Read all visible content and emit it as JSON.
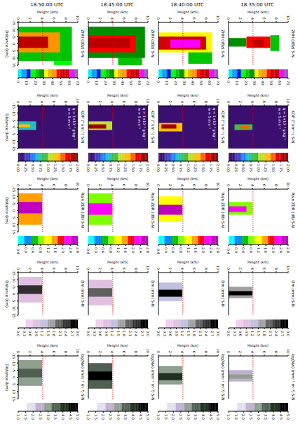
{
  "chart_data": {
    "type": "heatmap_grid",
    "rows": [
      "18:35:00 UTC",
      "18:40:00 UTC",
      "18:45:00 UTC",
      "18:50:00 UTC"
    ],
    "x_label": "Distance (km)",
    "y_label": "Height (km)",
    "xlim": [
      -15,
      15
    ],
    "xticks": [
      -15,
      -10,
      -5,
      0,
      5,
      10,
      15
    ],
    "ylim": [
      0,
      10
    ],
    "yticks": [
      0,
      2,
      4,
      6,
      8,
      10
    ],
    "reference_height": 4.1,
    "columns": [
      {
        "title": "ZHH (dBz) S-N",
        "colorbar": {
          "range": [
            0,
            70
          ],
          "ticks": [
            0,
            10,
            20,
            30,
            40,
            50,
            60,
            70
          ],
          "colors": [
            "#04e9e7",
            "#019ff4",
            "#0300f4",
            "#02fd02",
            "#01c501",
            "#008e00",
            "#fdf802",
            "#e5bc00",
            "#fd9500",
            "#fd0000",
            "#d40000",
            "#bc0000",
            "#f800fd",
            "#9854c6"
          ]
        },
        "annotations": [],
        "cells": [
          [
            [
              -6,
              5,
              7,
              8.5,
              20
            ],
            [
              -4,
              2,
              0,
              3,
              25
            ],
            [
              -5,
              3,
              3,
              7,
              45
            ],
            [
              -3,
              2,
              4,
              6,
              55
            ]
          ],
          [
            [
              5,
              14,
              5,
              9,
              20
            ],
            [
              -8,
              6,
              0,
              9,
              30
            ],
            [
              -5,
              4,
              0,
              8,
              50
            ],
            [
              -3,
              3,
              2,
              7,
              60
            ]
          ],
          [
            [
              6,
              15,
              5,
              9,
              20
            ],
            [
              -12,
              10,
              0,
              9.5,
              25
            ],
            [
              -6,
              6,
              0,
              8,
              45
            ],
            [
              -4,
              3,
              0,
              7,
              58
            ]
          ],
          [
            [
              6,
              15,
              6,
              9,
              15
            ],
            [
              -12,
              12,
              0,
              9,
              22
            ],
            [
              -8,
              6,
              0,
              7,
              42
            ],
            [
              -5,
              3,
              0,
              5,
              55
            ]
          ]
        ]
      },
      {
        "title": "KDP (° km⁻¹) S-N",
        "colorbar": {
          "range": [
            0,
            2
          ],
          "ticks": [
            {
              "value": 0,
              "label": "0.00"
            },
            {
              "value": 0.25,
              "label": "0.25"
            },
            {
              "value": 0.5,
              "label": "0.50"
            },
            {
              "value": 0.75,
              "label": "0.75"
            },
            {
              "value": 1,
              "label": "1.00"
            },
            {
              "value": 1.25,
              "label": "1.25"
            },
            {
              "value": 1.5,
              "label": "1.50"
            },
            {
              "value": 1.75,
              "label": "1.75"
            },
            {
              "value": 2,
              "label": "2.00"
            }
          ],
          "colors": [
            "#3b0f70",
            "#4040c0",
            "#2080ff",
            "#20c0c0",
            "#40c040",
            "#c0e030",
            "#ffc000",
            "#ff6000",
            "#e00000",
            "#a00000"
          ]
        },
        "annotations": [
          "q = 1×10⁻³ g kg⁻¹",
          "w = 5 m s⁻¹"
        ],
        "cells": [
          [
            [
              -15,
              15,
              0,
              10,
              0
            ],
            [
              -2,
              2,
              1,
              4,
              0.8
            ],
            [
              -1,
              1,
              2,
              3.5,
              1.5
            ]
          ],
          [
            [
              -15,
              15,
              0,
              10,
              0
            ],
            [
              -3,
              3,
              0,
              4,
              1.2
            ],
            [
              -2,
              1,
              0.5,
              3,
              2
            ]
          ],
          [
            [
              -15,
              15,
              0,
              10,
              0
            ],
            [
              -4,
              2,
              0,
              4,
              1
            ],
            [
              -2,
              1,
              0,
              3,
              1.8
            ]
          ],
          [
            [
              -15,
              15,
              0,
              10,
              0
            ],
            [
              -4,
              2,
              0,
              3,
              0.6
            ],
            [
              -2,
              0,
              0,
              2,
              1.2
            ]
          ]
        ]
      },
      {
        "title": "Rain ZDR (dB) S-N",
        "colorbar": {
          "range": [
            -0.4,
            2.8
          ],
          "ticks": [
            -0.4,
            {
              "value": 0,
              "label": "0.0"
            },
            0.4,
            0.8,
            1.2,
            1.6,
            {
              "value": 2,
              "label": "2.0"
            },
            2.4,
            2.8
          ],
          "colors": [
            "#00ffff",
            "#0080ff",
            "#00c000",
            "#80ff00",
            "#ffff00",
            "#ffa000",
            "#ff0000",
            "#ff00ff",
            "#c000c0"
          ]
        },
        "annotations": [],
        "cells": [
          [
            [
              -6,
              3,
              0,
              4,
              0.8
            ],
            [
              -3,
              1,
              0,
              3,
              2.4
            ]
          ],
          [
            [
              -10,
              8,
              0,
              4,
              1.2
            ],
            [
              -4,
              3,
              0,
              4,
              2.6
            ]
          ],
          [
            [
              -12,
              10,
              0,
              4,
              1
            ],
            [
              -5,
              3,
              0,
              4,
              2.2
            ]
          ],
          [
            [
              -12,
              10,
              0,
              4,
              1.6
            ],
            [
              -6,
              2,
              0,
              4,
              2.6
            ]
          ]
        ]
      },
      {
        "title": "Dm (mm) S-N",
        "colorbar": {
          "range": [
            0,
            3
          ],
          "ticks": [
            {
              "value": 0,
              "label": "0.0"
            },
            0.3,
            0.6,
            0.9,
            1.2,
            1.5,
            1.8,
            2.1,
            2.4,
            2.7,
            {
              "value": 3,
              "label": "3.0"
            }
          ],
          "colors": [
            "#ffffff",
            "#f0d0f0",
            "#e0c0e0",
            "#c0c0e0",
            "#a0a0a0",
            "#606060",
            "#303030",
            "#000000"
          ]
        },
        "annotations": [],
        "cells": [
          [
            [
              -5,
              3,
              0,
              4,
              1.5
            ],
            [
              -2,
              1,
              0,
              4,
              2.7
            ]
          ],
          [
            [
              -8,
              5,
              0,
              4,
              1.2
            ],
            [
              -3,
              2,
              0,
              4,
              2.8
            ]
          ],
          [
            [
              -10,
              8,
              0,
              4,
              0.9
            ],
            [
              -4,
              2,
              0,
              4,
              2
            ]
          ],
          [
            [
              -12,
              6,
              0,
              4,
              1
            ],
            [
              -6,
              0,
              0,
              4,
              2.4
            ]
          ]
        ]
      },
      {
        "title": "log(Nw) (mm⁻¹ m⁻³) S-N",
        "colorbar": {
          "range": [
            1,
            5
          ],
          "ticks": [
            {
              "value": 1,
              "label": "1.0"
            },
            1.5,
            {
              "value": 2,
              "label": "2.0"
            },
            2.5,
            {
              "value": 3,
              "label": "3.0"
            },
            3.5,
            {
              "value": 4,
              "label": "4.0"
            },
            4.5,
            {
              "value": 5,
              "label": "5.0"
            }
          ],
          "colors": [
            "#ffffff",
            "#e0e0f0",
            "#c0b0d0",
            "#90a090",
            "#506050",
            "#203020",
            "#000000"
          ]
        },
        "annotations": [],
        "cells": [
          [
            [
              -5,
              3,
              0,
              4,
              2.5
            ],
            [
              -2,
              1,
              0,
              4,
              3.2
            ]
          ],
          [
            [
              -8,
              5,
              0,
              4,
              3
            ],
            [
              -3,
              2,
              0,
              4,
              4
            ]
          ],
          [
            [
              -10,
              8,
              0,
              4,
              3.5
            ],
            [
              -4,
              2,
              0,
              4,
              4.5
            ]
          ],
          [
            [
              -12,
              6,
              0,
              4,
              2.8
            ],
            [
              -6,
              0,
              0,
              4,
              3.5
            ]
          ]
        ]
      }
    ]
  }
}
